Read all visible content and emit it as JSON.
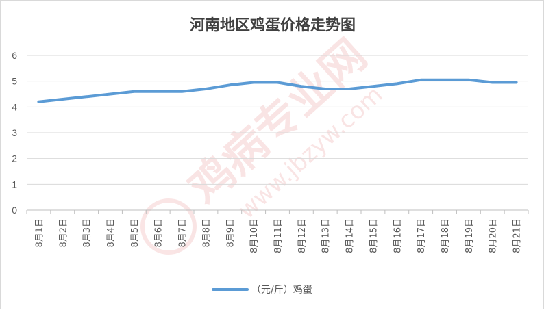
{
  "chart_data": {
    "type": "line",
    "title": "河南地区鸡蛋价格走势图",
    "xlabel": "",
    "ylabel": "",
    "ylim": [
      0,
      6
    ],
    "yticks": [
      0,
      1,
      2,
      3,
      4,
      5,
      6
    ],
    "grid": true,
    "legend_position": "bottom",
    "categories": [
      "8月1日",
      "8月2日",
      "8月3日",
      "8月4日",
      "8月5日",
      "8月6日",
      "8月7日",
      "8月8日",
      "8月9日",
      "8月10日",
      "8月11日",
      "8月12日",
      "8月13日",
      "8月14日",
      "8月15日",
      "8月16日",
      "8月17日",
      "8月18日",
      "8月19日",
      "8月20日",
      "8月21日"
    ],
    "series": [
      {
        "name": "（元/斤）鸡蛋",
        "color": "#5b9bd5",
        "values": [
          4.2,
          4.3,
          4.4,
          4.5,
          4.6,
          4.6,
          4.6,
          4.7,
          4.85,
          4.95,
          4.95,
          4.8,
          4.7,
          4.7,
          4.8,
          4.9,
          5.05,
          5.05,
          5.05,
          4.95,
          4.95
        ]
      }
    ]
  },
  "watermark": {
    "text_cn": "鸡病专业网",
    "text_url": "www.jbzyw.com",
    "color": "#e06060"
  }
}
